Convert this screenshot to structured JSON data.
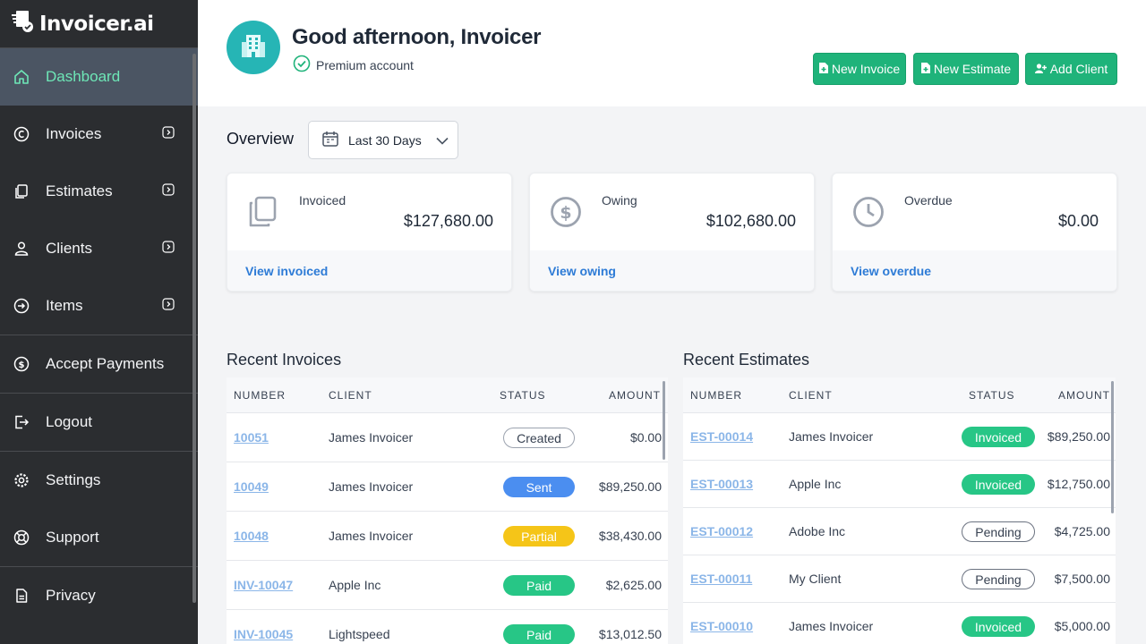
{
  "brand": {
    "name": "Invoicer.ai"
  },
  "sidebar": {
    "items": [
      {
        "label": "Dashboard",
        "icon": "home-icon",
        "active": true,
        "expandable": false
      },
      {
        "label": "Invoices",
        "icon": "invoices-icon",
        "active": false,
        "expandable": true
      },
      {
        "label": "Estimates",
        "icon": "estimates-icon",
        "active": false,
        "expandable": true
      },
      {
        "label": "Clients",
        "icon": "clients-icon",
        "active": false,
        "expandable": true
      },
      {
        "label": "Items",
        "icon": "items-icon",
        "active": false,
        "expandable": true
      },
      {
        "label": "Accept Payments",
        "icon": "dollar-circle-icon",
        "active": false,
        "expandable": false
      },
      {
        "label": "Logout",
        "icon": "logout-icon",
        "active": false,
        "expandable": false
      },
      {
        "label": "Settings",
        "icon": "gear-icon",
        "active": false,
        "expandable": false
      },
      {
        "label": "Support",
        "icon": "lifebuoy-icon",
        "active": false,
        "expandable": false
      },
      {
        "label": "Privacy",
        "icon": "document-icon",
        "active": false,
        "expandable": false
      }
    ]
  },
  "header": {
    "greeting": "Good afternoon, Invoicer",
    "account_status": "Premium account",
    "buttons": {
      "new_invoice": "New Invoice",
      "new_estimate": "New Estimate",
      "add_client": "Add Client"
    }
  },
  "overview": {
    "title": "Overview",
    "date_range": "Last 30 Days",
    "cards": [
      {
        "label": "Invoiced",
        "value": "$127,680.00",
        "link": "View invoiced",
        "icon": "copy-icon"
      },
      {
        "label": "Owing",
        "value": "$102,680.00",
        "link": "View owing",
        "icon": "dollar-circle-icon"
      },
      {
        "label": "Overdue",
        "value": "$0.00",
        "link": "View overdue",
        "icon": "clock-icon"
      }
    ]
  },
  "recent_invoices": {
    "title": "Recent Invoices",
    "columns": [
      "NUMBER",
      "CLIENT",
      "STATUS",
      "AMOUNT"
    ],
    "rows": [
      {
        "number": "10051",
        "client": "James Invoicer",
        "status": "Created",
        "amount": "$0.00"
      },
      {
        "number": "10049",
        "client": "James Invoicer",
        "status": "Sent",
        "amount": "$89,250.00"
      },
      {
        "number": "10048",
        "client": "James Invoicer",
        "status": "Partial",
        "amount": "$38,430.00"
      },
      {
        "number": "INV-10047",
        "client": "Apple Inc",
        "status": "Paid",
        "amount": "$2,625.00"
      },
      {
        "number": "INV-10045",
        "client": "Lightspeed",
        "status": "Paid",
        "amount": "$13,012.50"
      }
    ]
  },
  "recent_estimates": {
    "title": "Recent Estimates",
    "columns": [
      "NUMBER",
      "CLIENT",
      "STATUS",
      "AMOUNT"
    ],
    "rows": [
      {
        "number": "EST-00014",
        "client": "James Invoicer",
        "status": "Invoiced",
        "amount": "$89,250.00"
      },
      {
        "number": "EST-00013",
        "client": "Apple Inc",
        "status": "Invoiced",
        "amount": "$12,750.00"
      },
      {
        "number": "EST-00012",
        "client": "Adobe Inc",
        "status": "Pending",
        "amount": "$4,725.00"
      },
      {
        "number": "EST-00011",
        "client": "My Client",
        "status": "Pending",
        "amount": "$7,500.00"
      },
      {
        "number": "EST-00010",
        "client": "James Invoicer",
        "status": "Invoiced",
        "amount": "$5,000.00"
      }
    ]
  },
  "colors": {
    "sidebar_bg": "#2b2d30",
    "active_item_bg": "#4b5563",
    "active_item_text": "#6ee7b7",
    "primary_button": "#1fb37a",
    "link": "#2d7bd6",
    "status_sent": "#4b8ef0",
    "status_partial": "#f5c518",
    "status_paid": "#27c686"
  }
}
